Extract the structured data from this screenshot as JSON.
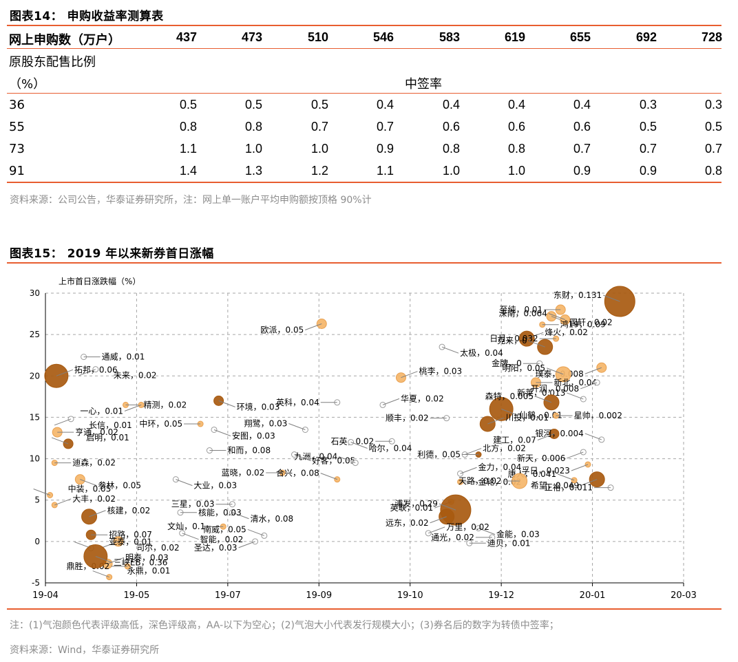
{
  "table14": {
    "title": "图表14： 申购收益率测算表",
    "header_label": "网上申购数（万户）",
    "columns": [
      "437",
      "473",
      "510",
      "546",
      "583",
      "619",
      "655",
      "692",
      "728"
    ],
    "ratio_label_line1": "原股东配售比例",
    "ratio_label_line2": "（%）",
    "group_label": "中签率",
    "rows": [
      {
        "label": "36",
        "values": [
          "0.5",
          "0.5",
          "0.5",
          "0.4",
          "0.4",
          "0.4",
          "0.4",
          "0.3",
          "0.3"
        ]
      },
      {
        "label": "55",
        "values": [
          "0.8",
          "0.8",
          "0.7",
          "0.7",
          "0.6",
          "0.6",
          "0.6",
          "0.5",
          "0.5"
        ]
      },
      {
        "label": "73",
        "values": [
          "1.1",
          "1.0",
          "1.0",
          "0.9",
          "0.8",
          "0.8",
          "0.7",
          "0.7",
          "0.7"
        ]
      },
      {
        "label": "91",
        "values": [
          "1.4",
          "1.3",
          "1.2",
          "1.1",
          "1.0",
          "1.0",
          "0.9",
          "0.9",
          "0.8"
        ]
      }
    ],
    "source": "资料来源：公司公告，华泰证券研究所，注：网上单一账户平均申购额按顶格 90%计"
  },
  "figure15": {
    "title": "图表15： 2019 年以来新券首日涨幅",
    "note": "注：(1)气泡颜色代表评级高低，深色评级高，AA-以下为空心；(2)气泡大小代表发行规模大小；(3)券名后的数字为转债中签率；",
    "source": "资料来源：Wind，华泰证券研究所"
  },
  "colors": {
    "accent": "#e85d2f",
    "dark": "#a85a10",
    "light": "#f5b66a",
    "grid": "#a6a6a6"
  },
  "chart_data": {
    "type": "scatter",
    "ylabel": "上市首日涨跌幅（%）",
    "xlabel": "",
    "x_ticks": [
      "19-04",
      "19-05",
      "19-07",
      "19-09",
      "19-10",
      "19-12",
      "20-01",
      "20-03"
    ],
    "x_range": [
      0,
      7
    ],
    "ylim": [
      -5,
      30
    ],
    "y_ticks": [
      -5,
      0,
      5,
      10,
      15,
      20,
      25,
      30
    ],
    "grid": true,
    "points": [
      {
        "name": "东财，0.131",
        "x": 6.3,
        "y": 29.0,
        "size": 5,
        "style": "dark"
      },
      {
        "name": "至纯，0.01",
        "x": 5.65,
        "y": 28.0,
        "size": 2,
        "style": "light"
      },
      {
        "name": "国轩，0.02",
        "x": 5.55,
        "y": 27.2,
        "size": 2,
        "style": "light"
      },
      {
        "name": "深南，0.064",
        "x": 5.7,
        "y": 26.8,
        "size": 2,
        "style": "light"
      },
      {
        "name": "鸿19，0.09",
        "x": 5.45,
        "y": 26.2,
        "size": 1,
        "style": "light"
      },
      {
        "name": "欧派，0.05",
        "x": 3.03,
        "y": 26.3,
        "size": 2,
        "style": "light"
      },
      {
        "name": "烽火，0.02",
        "x": 5.28,
        "y": 24.5,
        "size": 3,
        "style": "dark"
      },
      {
        "name": "日月，0.032",
        "x": 5.6,
        "y": 24.5,
        "size": 1,
        "style": "light"
      },
      {
        "name": "太极，0.04",
        "x": 4.35,
        "y": 23.5,
        "size": 1,
        "style": "hollow"
      },
      {
        "name": "克来，0",
        "x": 5.48,
        "y": 23.5,
        "size": 3,
        "style": "dark"
      },
      {
        "name": "通威，0.01",
        "x": 0.42,
        "y": 22.3,
        "size": 1,
        "style": "hollow"
      },
      {
        "name": "未来，0.02",
        "x": 0.55,
        "y": 20.8,
        "size": 1,
        "style": "hollow"
      },
      {
        "name": "桃李，0.03",
        "x": 3.9,
        "y": 19.8,
        "size": 2,
        "style": "light"
      },
      {
        "name": "金牌，0",
        "x": 5.42,
        "y": 21.5,
        "size": 1,
        "style": "hollow"
      },
      {
        "name": "璞泰，0.008",
        "x": 6.1,
        "y": 21.0,
        "size": 2,
        "style": "light"
      },
      {
        "name": "明阳，0.05",
        "x": 5.68,
        "y": 20.2,
        "size": 3,
        "style": "light"
      },
      {
        "name": "新北，0.04",
        "x": 5.38,
        "y": 19.2,
        "size": 2,
        "style": "light"
      },
      {
        "name": "开润，0.008",
        "x": 6.05,
        "y": 19.2,
        "size": 1,
        "style": "hollow"
      },
      {
        "name": "拓邦，0.06",
        "x": 0.12,
        "y": 20.0,
        "size": 4,
        "style": "dark"
      },
      {
        "name": "英科，0.04",
        "x": 3.2,
        "y": 16.8,
        "size": 1,
        "style": "hollow"
      },
      {
        "name": "环境，0.03",
        "x": 1.9,
        "y": 17.0,
        "size": 2,
        "style": "dark"
      },
      {
        "name": "新莱，0.013",
        "x": 5.9,
        "y": 17.2,
        "size": 1,
        "style": "hollow"
      },
      {
        "name": "精测，0.02",
        "x": 0.88,
        "y": 16.5,
        "size": 1,
        "style": "light"
      },
      {
        "name": "一心，0.01",
        "x": 1.05,
        "y": 16.5,
        "size": 1,
        "style": "light"
      },
      {
        "name": "华夏，0.02",
        "x": 3.7,
        "y": 16.5,
        "size": 1,
        "style": "hollow"
      },
      {
        "name": "顺丰，0.02",
        "x": 4.4,
        "y": 14.9,
        "size": 1,
        "style": "hollow"
      },
      {
        "name": "仙鹤，0.01",
        "x": 5.0,
        "y": 16.0,
        "size": 4,
        "style": "dark"
      },
      {
        "name": "森特，0.005",
        "x": 5.55,
        "y": 16.8,
        "size": 3,
        "style": "dark"
      },
      {
        "name": "星帅，0.002",
        "x": 5.6,
        "y": 15.2,
        "size": 1,
        "style": "light"
      },
      {
        "name": "长信，0.01",
        "x": 0.28,
        "y": 14.8,
        "size": 1,
        "style": "hollow"
      },
      {
        "name": "川投，0.01",
        "x": 4.85,
        "y": 14.2,
        "size": 3,
        "style": "dark"
      },
      {
        "name": "中环，0.05",
        "x": 1.7,
        "y": 14.2,
        "size": 1,
        "style": "light"
      },
      {
        "name": "安图，0.03",
        "x": 1.85,
        "y": 13.5,
        "size": 1,
        "style": "hollow"
      },
      {
        "name": "翔鹭，0.03",
        "x": 2.85,
        "y": 13.5,
        "size": 1,
        "style": "hollow"
      },
      {
        "name": "亨通，0.02",
        "x": 0.13,
        "y": 13.2,
        "size": 2,
        "style": "light"
      },
      {
        "name": "建工，0.07",
        "x": 5.58,
        "y": 13.0,
        "size": 2,
        "style": "dark"
      },
      {
        "name": "银河，0.004",
        "x": 6.1,
        "y": 12.3,
        "size": 1,
        "style": "hollow"
      },
      {
        "name": "石英，0.02",
        "x": 3.8,
        "y": 12.1,
        "size": 1,
        "style": "hollow"
      },
      {
        "name": "哈尔，0.04",
        "x": 3.35,
        "y": 12.0,
        "size": 1,
        "style": "hollow"
      },
      {
        "name": "启明，0.01",
        "x": 0.25,
        "y": 11.8,
        "size": 2,
        "style": "dark"
      },
      {
        "name": "和而，0.08",
        "x": 1.8,
        "y": 11.0,
        "size": 1,
        "style": "hollow"
      },
      {
        "name": "新天，0.006",
        "x": 5.9,
        "y": 10.8,
        "size": 1,
        "style": "hollow"
      },
      {
        "name": "北方，0.02",
        "x": 4.6,
        "y": 10.5,
        "size": 1,
        "style": "hollow"
      },
      {
        "name": "利德，0.05",
        "x": 4.75,
        "y": 10.5,
        "size": 1,
        "style": "dark"
      },
      {
        "name": "好客，0.05",
        "x": 2.73,
        "y": 10.5,
        "size": 1,
        "style": "hollow"
      },
      {
        "name": "九洲，0.04",
        "x": 3.4,
        "y": 9.5,
        "size": 1,
        "style": "hollow"
      },
      {
        "name": "迪森，0.02",
        "x": 0.1,
        "y": 9.5,
        "size": 1,
        "style": "light"
      },
      {
        "name": "孚日，0.023",
        "x": 5.95,
        "y": 9.3,
        "size": 1,
        "style": "light"
      },
      {
        "name": "金力，0.04",
        "x": 4.55,
        "y": 8.2,
        "size": 1,
        "style": "hollow"
      },
      {
        "name": "蓝晓，0.02",
        "x": 2.6,
        "y": 8.3,
        "size": 1,
        "style": "light"
      },
      {
        "name": "参林，0.05",
        "x": 0.38,
        "y": 7.5,
        "size": 2,
        "style": "light"
      },
      {
        "name": "合兴，0.08",
        "x": 3.2,
        "y": 7.5,
        "size": 1,
        "style": "light"
      },
      {
        "name": "金轮，0.02",
        "x": 4.55,
        "y": 7.2,
        "size": 1,
        "style": "light"
      },
      {
        "name": "希望，0.049",
        "x": 6.05,
        "y": 7.5,
        "size": 3,
        "style": "dark"
      },
      {
        "name": "唐人，0.041",
        "x": 5.8,
        "y": 7.4,
        "size": 1,
        "style": "light"
      },
      {
        "name": "天路，0.02",
        "x": 5.2,
        "y": 7.3,
        "size": 3,
        "style": "light"
      },
      {
        "name": "大业，0.03",
        "x": 1.43,
        "y": 7.5,
        "size": 1,
        "style": "hollow"
      },
      {
        "name": "中装，0.05",
        "x": 0.05,
        "y": 5.6,
        "size": 1,
        "style": "light"
      },
      {
        "name": "正裕，0.011",
        "x": 6.2,
        "y": 6.5,
        "size": 1,
        "style": "hollow"
      },
      {
        "name": "英联，0.01",
        "x": 4.45,
        "y": 4.8,
        "size": 1,
        "style": "light"
      },
      {
        "name": "大丰，0.02",
        "x": 0.1,
        "y": 4.4,
        "size": 1,
        "style": "light"
      },
      {
        "name": "三星，0.03",
        "x": 2.05,
        "y": 4.5,
        "size": 1,
        "style": "hollow"
      },
      {
        "name": "清水，0.08",
        "x": 2.05,
        "y": 3.5,
        "size": 1,
        "style": "hollow"
      },
      {
        "name": "浦发，0.29",
        "x": 4.5,
        "y": 3.8,
        "size": 5,
        "style": "dark"
      },
      {
        "name": "核能，0.03",
        "x": 1.48,
        "y": 3.5,
        "size": 1,
        "style": "hollow"
      },
      {
        "name": "远东，0.02",
        "x": 4.4,
        "y": 3.0,
        "size": 3,
        "style": "dark"
      },
      {
        "name": "核建，0.02",
        "x": 0.48,
        "y": 3.0,
        "size": 3,
        "style": "dark"
      },
      {
        "name": "文灿，0.1",
        "x": 1.95,
        "y": 1.8,
        "size": 1,
        "style": "light"
      },
      {
        "name": "金能，0.03",
        "x": 4.75,
        "y": 1.6,
        "size": 1,
        "style": "hollow"
      },
      {
        "name": "南威，0.05",
        "x": 2.4,
        "y": 0.7,
        "size": 1,
        "style": "hollow"
      },
      {
        "name": "招路，0.07",
        "x": 0.5,
        "y": 0.8,
        "size": 2,
        "style": "dark"
      },
      {
        "name": "司尔，0.02",
        "x": 0.8,
        "y": 0.0,
        "size": 2,
        "style": "light"
      },
      {
        "name": "万里，0.02",
        "x": 4.2,
        "y": 1.0,
        "size": 1,
        "style": "hollow"
      },
      {
        "name": "通光，0.02",
        "x": 4.9,
        "y": 0.5,
        "size": 1,
        "style": "hollow"
      },
      {
        "name": "智能，0.02",
        "x": 1.5,
        "y": 1.0,
        "size": 1,
        "style": "hollow"
      },
      {
        "name": "亚泰，0.01",
        "x": 0.5,
        "y": -0.8,
        "size": 1,
        "style": "hollow"
      },
      {
        "name": "迪贝，0.01",
        "x": 4.65,
        "y": -0.2,
        "size": 1,
        "style": "hollow"
      },
      {
        "name": "圣达，0.03",
        "x": 2.3,
        "y": 0.0,
        "size": 1,
        "style": "hollow"
      },
      {
        "name": "明泰，0.03",
        "x": 0.68,
        "y": -2.7,
        "size": 2,
        "style": "light"
      },
      {
        "name": "鼎胜，0.02",
        "x": 0.9,
        "y": -3.0,
        "size": 1,
        "style": "light"
      },
      {
        "name": "三峡EB，0.36",
        "x": 0.55,
        "y": -1.8,
        "size": 4,
        "style": "dark"
      },
      {
        "name": "永鼎，0.01",
        "x": 0.7,
        "y": -4.3,
        "size": 1,
        "style": "light"
      }
    ]
  }
}
